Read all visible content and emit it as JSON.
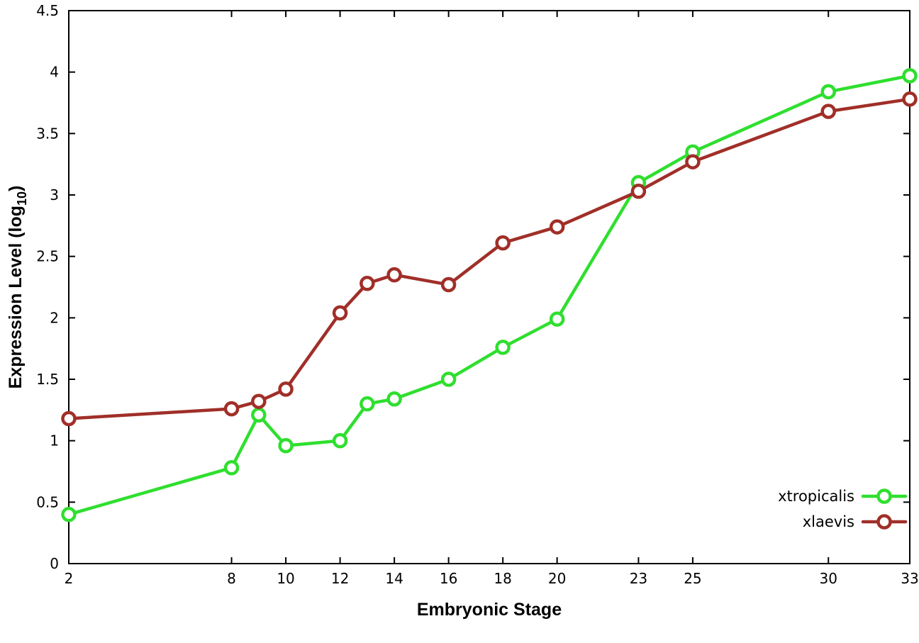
{
  "chart_data": {
    "type": "line",
    "title": "",
    "xlabel": "Embryonic Stage",
    "ylabel": "Expression Level (log10)",
    "ylabel_parts": [
      "Expression Level (log",
      "10",
      ")"
    ],
    "x": [
      2,
      8,
      9,
      10,
      12,
      13,
      14,
      16,
      18,
      20,
      23,
      25,
      30,
      33
    ],
    "series": [
      {
        "name": "xtropicalis",
        "color": "#2fdf2f",
        "marker": "open-circle",
        "values": [
          0.4,
          0.78,
          1.21,
          0.96,
          1.0,
          1.3,
          1.34,
          1.5,
          1.76,
          1.99,
          3.1,
          3.35,
          3.84,
          3.97
        ]
      },
      {
        "name": "xlaevis",
        "color": "#a02f28",
        "marker": "open-circle",
        "values": [
          1.18,
          1.26,
          1.32,
          1.42,
          2.04,
          2.28,
          2.35,
          2.27,
          2.61,
          2.74,
          3.03,
          3.27,
          3.68,
          3.78
        ]
      }
    ],
    "xticks": [
      2,
      8,
      10,
      12,
      14,
      16,
      18,
      20,
      23,
      25,
      30,
      33
    ],
    "xtick_labels": [
      "2",
      "8",
      "10",
      "12",
      "14",
      "16",
      "18",
      "20",
      "23",
      "25",
      "30",
      "33"
    ],
    "yticks": [
      0,
      0.5,
      1,
      1.5,
      2,
      2.5,
      3,
      3.5,
      4,
      4.5
    ],
    "ytick_labels": [
      "0",
      "0.5",
      "1",
      "1.5",
      "2",
      "2.5",
      "3",
      "3.5",
      "4",
      "4.5"
    ],
    "xlim": [
      2,
      33
    ],
    "ylim": [
      0,
      4.5
    ],
    "grid": false,
    "legend_position": "bottom-right",
    "axis_color": "#000000",
    "background_color": "#ffffff",
    "marker_fill": "#ffffff"
  }
}
